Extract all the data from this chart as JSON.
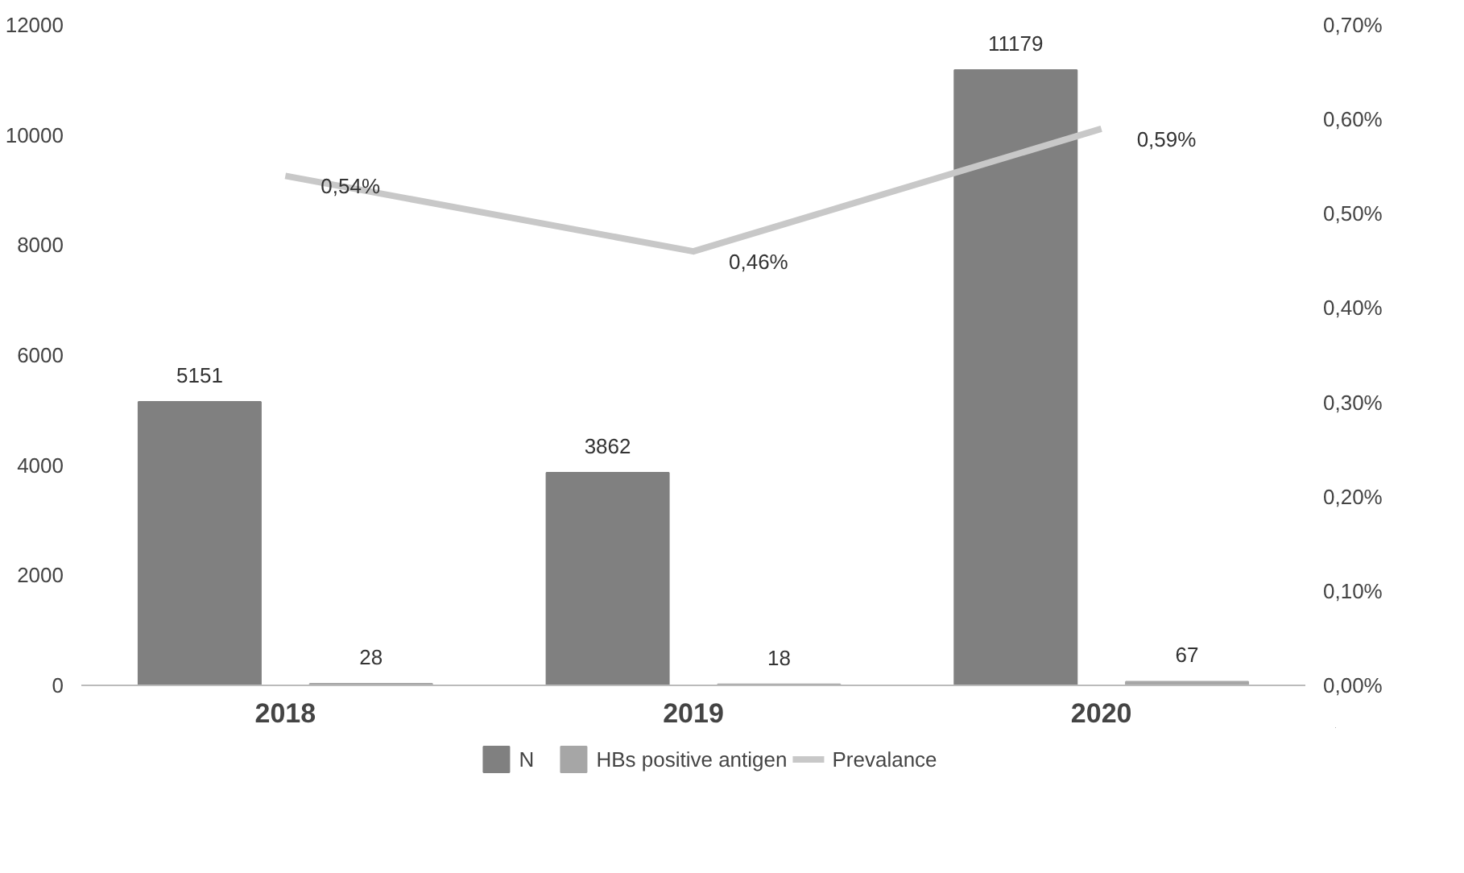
{
  "chart_data": {
    "type": "bar",
    "categories": [
      "2018",
      "2019",
      "2020"
    ],
    "series": [
      {
        "name": "N",
        "color": "#808080",
        "values": [
          5151,
          3862,
          11179
        ],
        "value_labels": [
          "5151",
          "3862",
          "11179"
        ]
      },
      {
        "name": "HBs positive antigen",
        "color": "#a6a6a6",
        "values": [
          28,
          18,
          67
        ],
        "value_labels": [
          "28",
          "18",
          "67"
        ]
      },
      {
        "name": "Prevalance",
        "type": "line",
        "axis": "y2",
        "color": "#c8c8c8",
        "values": [
          0.54,
          0.46,
          0.59
        ],
        "value_labels": [
          "0,54%",
          "0,46%",
          "0,59%"
        ]
      }
    ],
    "ylim": [
      0,
      12000
    ],
    "yticks": [
      0,
      {
        "value": 2000,
        "label": "2000"
      },
      {
        "value": 4000,
        "label": "4000"
      },
      {
        "value": 6000,
        "label": "6000"
      },
      {
        "value": 8000,
        "label": "8000"
      },
      {
        "value": 10000,
        "label": "10000"
      },
      {
        "value": 12000,
        "label": "12000"
      }
    ],
    "y2lim": [
      0,
      0.7
    ],
    "y2ticks": [
      {
        "value": 0,
        "label": "0,00%"
      },
      {
        "value": 0.1,
        "label": "0,10%"
      },
      {
        "value": 0.2,
        "label": "0,20%"
      },
      {
        "value": 0.3,
        "label": "0,30%"
      },
      {
        "value": 0.4,
        "label": "0,40%"
      },
      {
        "value": 0.5,
        "label": "0,50%"
      },
      {
        "value": 0.6,
        "label": "0,60%"
      },
      {
        "value": 0.7,
        "label": "0,70%"
      }
    ],
    "legend": "bottom",
    "grid": false,
    "marker": "none",
    "line_style": "solid"
  }
}
